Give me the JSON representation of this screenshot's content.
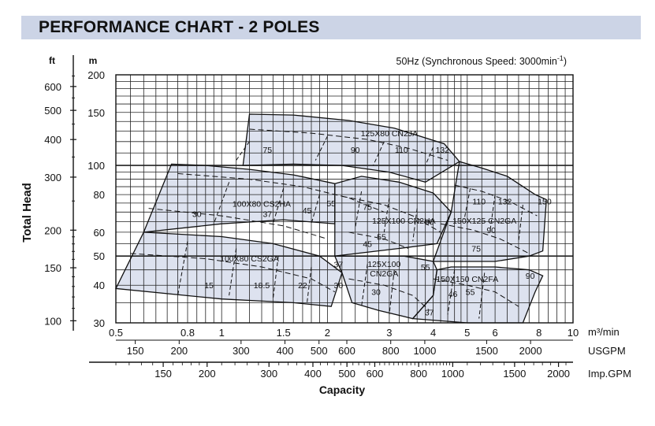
{
  "header": {
    "title": "PERFORMANCE CHART - 2 POLES"
  },
  "chart_data": {
    "type": "line",
    "subtitle": "50Hz (Synchronous Speed: 3000min",
    "subtitle_sup": "-1",
    "subtitle_end": ")",
    "ylabel": "Total Head",
    "xlabel": "Capacity",
    "y_unit_m": "m",
    "y_unit_ft": "ft",
    "x_unit_m3": "m³/min",
    "x_unit_usgpm": "USGPM",
    "x_unit_impgpm": "Imp.GPM",
    "log_scale": true,
    "grid": true,
    "xlim": [
      0.5,
      10
    ],
    "ylim": [
      30,
      200
    ],
    "x_ticks": [
      0.5,
      0.8,
      1,
      1.5,
      2,
      3,
      4,
      5,
      6,
      8,
      10
    ],
    "x_tick_labels": [
      "0.5",
      "0.8",
      "1",
      "1.5",
      "2",
      "3",
      "4",
      "5",
      "6",
      "8",
      "10"
    ],
    "y_ticks_m": [
      30,
      40,
      50,
      60,
      80,
      100,
      150,
      200
    ],
    "y_tick_labels_m": [
      "30",
      "40",
      "50",
      "60",
      "80",
      "100",
      "150",
      "200"
    ],
    "y_ticks_ft": [
      100,
      150,
      200,
      300,
      400,
      500,
      600
    ],
    "y_tick_labels_ft": [
      "100",
      "150",
      "200",
      "300",
      "400",
      "500",
      "600"
    ],
    "usgpm_ticks": [
      150,
      200,
      300,
      400,
      500,
      600,
      800,
      1000,
      1500,
      2000
    ],
    "usgpm_tick_labels": [
      "150",
      "200",
      "300",
      "400",
      "500",
      "600",
      "800",
      "1000",
      "1500",
      "2000"
    ],
    "impgpm_ticks": [
      150,
      200,
      300,
      400,
      500,
      600,
      800,
      1000,
      1500,
      2000
    ],
    "impgpm_tick_labels": [
      "150",
      "200",
      "300",
      "400",
      "500",
      "600",
      "800",
      "1000",
      "1500",
      "2000"
    ],
    "pump_regions": [
      {
        "name": "125X80 CN2JA",
        "label_at": [
          3.0,
          125
        ],
        "polygon": [
          [
            1.15,
            100
          ],
          [
            1.2,
            148
          ],
          [
            1.6,
            147
          ],
          [
            2.3,
            141
          ],
          [
            3.1,
            133
          ],
          [
            4.3,
            118
          ],
          [
            4.75,
            103
          ],
          [
            3.8,
            88
          ],
          [
            3.0,
            95
          ],
          [
            2.2,
            100
          ],
          [
            1.6,
            101
          ]
        ]
      },
      {
        "name": "100X80 CS2HA",
        "label_at": [
          1.3,
          73
        ],
        "polygon": [
          [
            0.6,
            60
          ],
          [
            0.72,
            101
          ],
          [
            0.9,
            100
          ],
          [
            1.2,
            97
          ],
          [
            1.6,
            93
          ],
          [
            2.1,
            87
          ],
          [
            2.1,
            64
          ],
          [
            1.5,
            66
          ],
          [
            1.0,
            64
          ]
        ]
      },
      {
        "name": "125X100 CN2HA",
        "label_at": [
          3.3,
          64
        ],
        "polygon": [
          [
            2.1,
            50
          ],
          [
            2.1,
            87
          ],
          [
            2.5,
            92
          ],
          [
            3.2,
            88
          ],
          [
            4.0,
            81
          ],
          [
            4.5,
            70
          ],
          [
            4.1,
            55
          ],
          [
            3.2,
            53
          ]
        ]
      },
      {
        "name": "150X125 CN2GA",
        "label_at": [
          5.6,
          64
        ],
        "polygon": [
          [
            4.0,
            48
          ],
          [
            4.5,
            70
          ],
          [
            4.75,
            103
          ],
          [
            5.5,
            98
          ],
          [
            6.5,
            92
          ],
          [
            7.8,
            80
          ],
          [
            8.4,
            77
          ],
          [
            8.2,
            52
          ],
          [
            7.5,
            50
          ],
          [
            6.0,
            48
          ]
        ]
      },
      {
        "name": "100X80 CS2GA",
        "label_at": [
          1.2,
          48
        ],
        "polygon": [
          [
            0.5,
            39
          ],
          [
            0.6,
            60
          ],
          [
            1.0,
            58
          ],
          [
            1.4,
            55
          ],
          [
            1.9,
            50
          ],
          [
            2.2,
            44
          ],
          [
            2.05,
            34
          ],
          [
            1.6,
            35
          ],
          [
            1.0,
            36
          ]
        ]
      },
      {
        "name": "125X100 CN2GA",
        "label_at": [
          2.9,
          46
        ],
        "polygon": [
          [
            2.1,
            50
          ],
          [
            2.2,
            44
          ],
          [
            2.35,
            35
          ],
          [
            2.8,
            33
          ],
          [
            3.5,
            31
          ],
          [
            4.0,
            37
          ],
          [
            4.1,
            45
          ],
          [
            4.0,
            48
          ],
          [
            3.3,
            50
          ]
        ]
      },
      {
        "name": "150X150 CN2FA",
        "label_at": [
          5.0,
          41
        ],
        "polygon": [
          [
            3.5,
            31
          ],
          [
            4.0,
            37
          ],
          [
            4.1,
            45
          ],
          [
            4.5,
            46
          ],
          [
            6.0,
            46
          ],
          [
            7.5,
            45
          ],
          [
            8.2,
            43
          ],
          [
            7.8,
            38
          ],
          [
            7.2,
            30
          ],
          [
            5.0,
            30
          ]
        ]
      }
    ],
    "motor_kw_labels": [
      {
        "text": "75",
        "at": [
          1.35,
          113
        ]
      },
      {
        "text": "90",
        "at": [
          2.4,
          113
        ]
      },
      {
        "text": "110",
        "at": [
          3.25,
          113
        ]
      },
      {
        "text": "132",
        "at": [
          4.25,
          113
        ]
      },
      {
        "text": "30",
        "at": [
          0.85,
          69
        ]
      },
      {
        "text": "37",
        "at": [
          1.35,
          69
        ]
      },
      {
        "text": "45",
        "at": [
          1.75,
          71
        ]
      },
      {
        "text": "55",
        "at": [
          2.05,
          75
        ]
      },
      {
        "text": "75",
        "at": [
          2.6,
          73
        ]
      },
      {
        "text": "90",
        "at": [
          3.9,
          65
        ]
      },
      {
        "text": "55",
        "at": [
          2.85,
          58
        ]
      },
      {
        "text": "45",
        "at": [
          2.6,
          55
        ]
      },
      {
        "text": "110",
        "at": [
          5.4,
          76
        ]
      },
      {
        "text": "132",
        "at": [
          6.4,
          76
        ]
      },
      {
        "text": "150",
        "at": [
          8.3,
          76
        ]
      },
      {
        "text": "90",
        "at": [
          5.85,
          61
        ]
      },
      {
        "text": "75",
        "at": [
          5.3,
          53
        ]
      },
      {
        "text": "37",
        "at": [
          2.15,
          47
        ]
      },
      {
        "text": "55",
        "at": [
          3.8,
          46
        ]
      },
      {
        "text": "90",
        "at": [
          7.55,
          43
        ]
      },
      {
        "text": "15",
        "at": [
          0.92,
          40
        ]
      },
      {
        "text": "18.5",
        "at": [
          1.3,
          40
        ]
      },
      {
        "text": "22",
        "at": [
          1.7,
          40
        ]
      },
      {
        "text": "30",
        "at": [
          2.15,
          40
        ]
      },
      {
        "text": "30",
        "at": [
          2.75,
          38
        ]
      },
      {
        "text": "46",
        "at": [
          4.55,
          37.5
        ]
      },
      {
        "text": "55",
        "at": [
          5.1,
          38
        ]
      },
      {
        "text": "37",
        "at": [
          3.9,
          32.5
        ]
      }
    ]
  }
}
